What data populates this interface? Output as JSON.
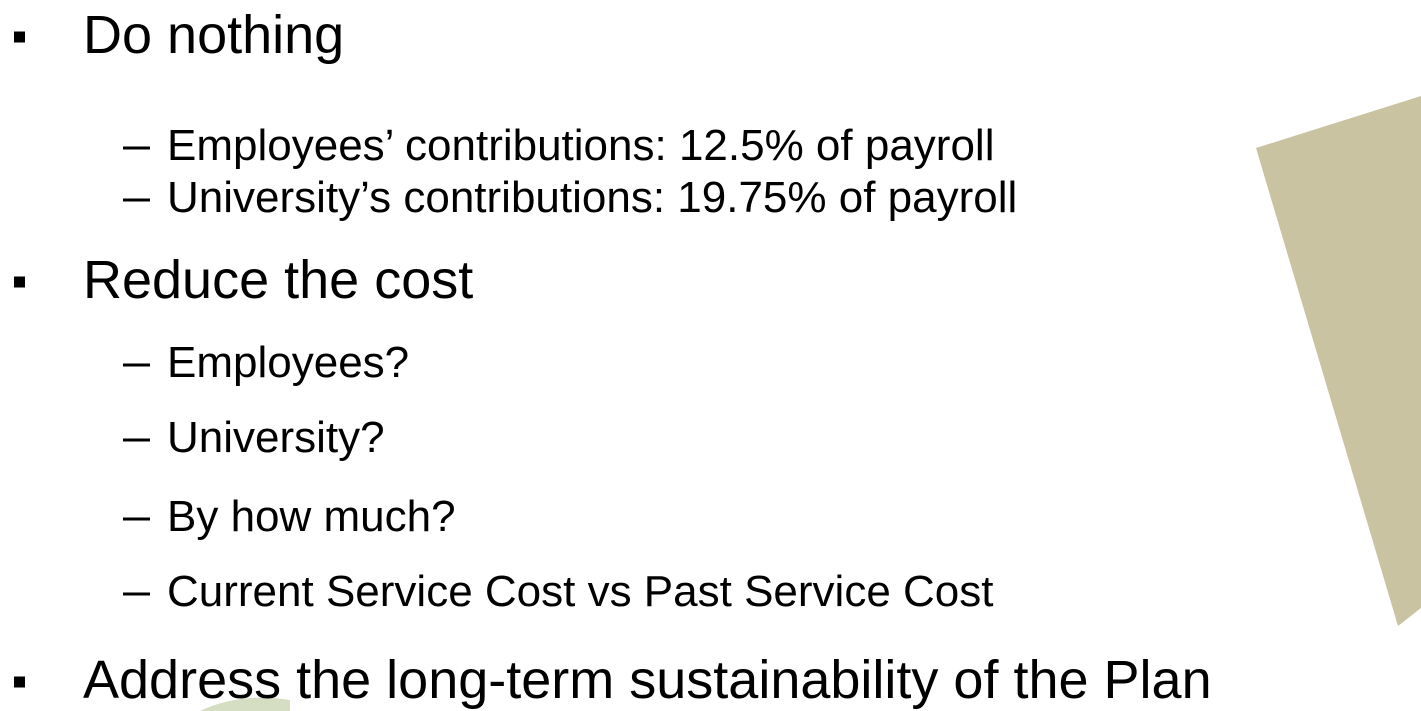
{
  "items": [
    {
      "text": "Do nothing",
      "subitems": [
        "Employees’ contributions: 12.5% of payroll",
        "University’s contributions: 19.75% of payroll"
      ]
    },
    {
      "text": "Reduce the cost",
      "subitems": [
        "Employees?",
        "University?",
        "By how much?",
        "Current Service Cost vs Past Service Cost"
      ]
    },
    {
      "text": "Address the long-term sustainability of the Plan",
      "subitems": []
    }
  ]
}
